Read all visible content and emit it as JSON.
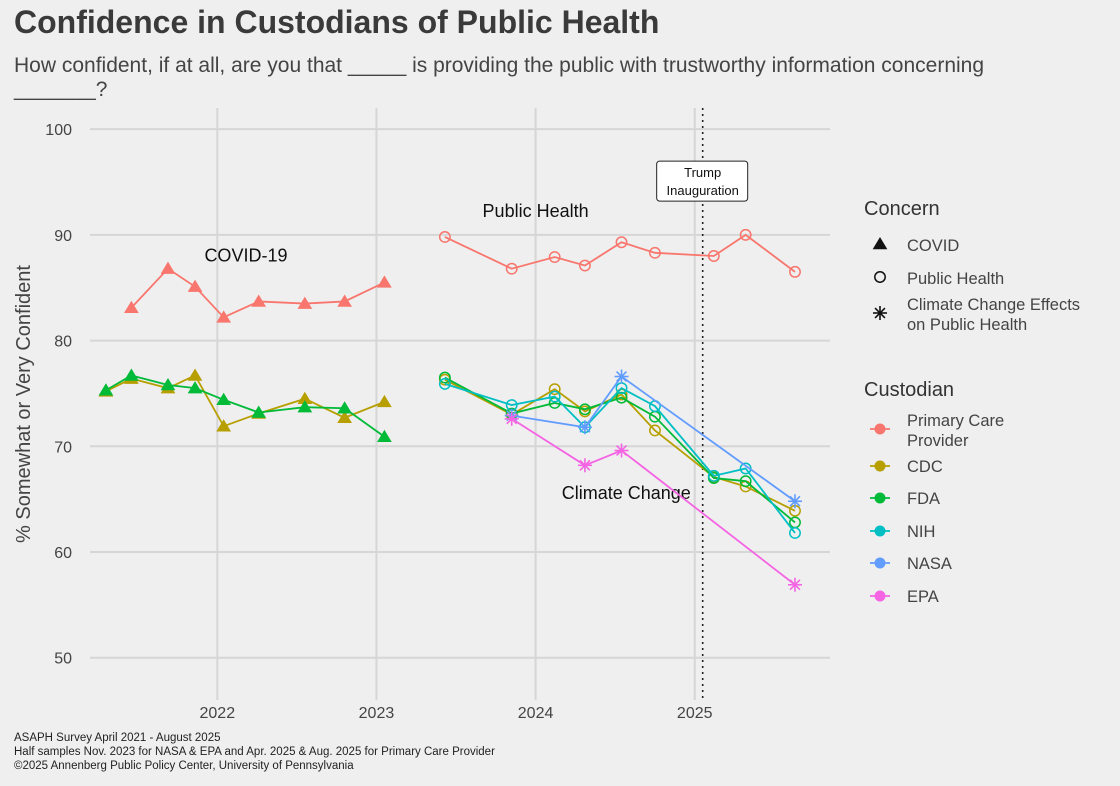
{
  "header": {
    "title": "Confidence in Custodians of Public Health",
    "subtitle": "How confident, if at all, are you that _____ is providing the public with trustworthy information concerning _______?"
  },
  "caption": {
    "line1": "ASAPH Survey April 2021 - August 2025",
    "line2": "Half samples Nov. 2023 for NASA & EPA and Apr. 2025 & Aug. 2025 for Primary Care Provider",
    "line3": "©2025 Annenberg Public Policy Center, University of Pennsylvania"
  },
  "chart_data": {
    "type": "line",
    "title": "Confidence in Custodians of Public Health",
    "xlabel": "",
    "ylabel": "% Somewhat or Very Confident",
    "xlim": [
      2021.2,
      2025.85
    ],
    "ylim": [
      46,
      102
    ],
    "x_ticks": [
      2022,
      2023,
      2024,
      2025
    ],
    "x_tick_labels": [
      "2022",
      "2023",
      "2024",
      "2025"
    ],
    "y_ticks": [
      50,
      60,
      70,
      80,
      90,
      100
    ],
    "y_tick_labels": [
      "50",
      "60",
      "70",
      "80",
      "90",
      "100"
    ],
    "grid": true,
    "colors": {
      "Primary Care Provider": "#f8766d",
      "CDC": "#b79f00",
      "FDA": "#00ba38",
      "NIH": "#00bfc4",
      "NASA": "#619cff",
      "EPA": "#f564e3"
    },
    "annotations": [
      {
        "text": "COVID-19",
        "x": 2022.18,
        "y": 87.5
      },
      {
        "text": "Public Health",
        "x": 2024.0,
        "y": 91.7
      },
      {
        "text": "Climate Change",
        "x": 2024.57,
        "y": 65.0
      }
    ],
    "vline": {
      "x": 2025.05,
      "label_line1": "Trump",
      "label_line2": "Inauguration",
      "label_y": 94.8
    },
    "legend": {
      "concern_title": "Concern",
      "concern_items": [
        {
          "shape": "triangle",
          "label": "COVID"
        },
        {
          "shape": "circle",
          "label": "Public Health"
        },
        {
          "shape": "asterisk",
          "label_line1": "Climate Change Effects",
          "label_line2": "on Public Health"
        }
      ],
      "custodian_title": "Custodian",
      "custodian_items": [
        {
          "name": "Primary Care Provider",
          "label_line1": "Primary Care",
          "label_line2": "Provider"
        },
        {
          "name": "CDC",
          "label_line1": "CDC"
        },
        {
          "name": "FDA",
          "label_line1": "FDA"
        },
        {
          "name": "NIH",
          "label_line1": "NIH"
        },
        {
          "name": "NASA",
          "label_line1": "NASA"
        },
        {
          "name": "EPA",
          "label_line1": "EPA"
        }
      ]
    },
    "series": [
      {
        "name": "Primary Care Provider",
        "concern": "COVID",
        "shape": "triangle",
        "x": [
          2021.46,
          2021.69,
          2021.86,
          2022.04,
          2022.26,
          2022.55,
          2022.8,
          2023.05
        ],
        "values": [
          83.1,
          86.8,
          85.1,
          82.2,
          83.7,
          83.5,
          83.7,
          85.5
        ]
      },
      {
        "name": "CDC",
        "concern": "COVID",
        "shape": "triangle",
        "x": [
          2021.3,
          2021.46,
          2021.69,
          2021.86,
          2022.04,
          2022.26,
          2022.55,
          2022.8,
          2023.05
        ],
        "values": [
          75.2,
          76.4,
          75.5,
          76.7,
          71.9,
          73.1,
          74.5,
          72.7,
          74.2
        ]
      },
      {
        "name": "FDA",
        "concern": "COVID",
        "shape": "triangle",
        "x": [
          2021.3,
          2021.46,
          2021.69,
          2021.86,
          2022.04,
          2022.26,
          2022.55,
          2022.8,
          2023.05
        ],
        "values": [
          75.3,
          76.7,
          75.8,
          75.5,
          74.4,
          73.2,
          73.7,
          73.6,
          70.9
        ]
      },
      {
        "name": "Primary Care Provider",
        "concern": "Public Health",
        "shape": "circle",
        "x": [
          2023.43,
          2023.85,
          2024.12,
          2024.31,
          2024.54,
          2024.75,
          2025.12,
          2025.32,
          2025.63
        ],
        "values": [
          89.8,
          86.8,
          87.9,
          87.1,
          89.3,
          88.3,
          88.0,
          90.0,
          86.5
        ]
      },
      {
        "name": "CDC",
        "concern": "Public Health",
        "shape": "circle",
        "x": [
          2023.43,
          2023.85,
          2024.12,
          2024.31,
          2024.54,
          2024.75,
          2025.12,
          2025.32,
          2025.63
        ],
        "values": [
          76.3,
          73.0,
          75.4,
          73.3,
          74.9,
          71.5,
          67.1,
          66.2,
          63.9
        ]
      },
      {
        "name": "FDA",
        "concern": "Public Health",
        "shape": "circle",
        "x": [
          2023.43,
          2023.85,
          2024.12,
          2024.31,
          2024.54,
          2024.75,
          2025.12,
          2025.32,
          2025.63
        ],
        "values": [
          76.5,
          73.1,
          74.1,
          73.5,
          74.6,
          72.8,
          67.0,
          66.7,
          62.8
        ]
      },
      {
        "name": "NIH",
        "concern": "Public Health",
        "shape": "circle",
        "x": [
          2023.43,
          2023.85,
          2024.12,
          2024.31,
          2024.54,
          2024.75,
          2025.12,
          2025.32,
          2025.63
        ],
        "values": [
          75.9,
          73.9,
          74.7,
          71.8,
          75.5,
          73.8,
          67.2,
          67.9,
          61.8
        ]
      },
      {
        "name": "NASA",
        "concern": "Climate Change Effects on Public Health",
        "shape": "asterisk",
        "x": [
          2023.85,
          2024.31,
          2024.54,
          2025.63
        ],
        "values": [
          72.9,
          71.8,
          76.6,
          64.8
        ]
      },
      {
        "name": "EPA",
        "concern": "Climate Change Effects on Public Health",
        "shape": "asterisk",
        "x": [
          2023.85,
          2024.31,
          2024.54,
          2025.63
        ],
        "values": [
          72.6,
          68.2,
          69.6,
          56.9
        ]
      }
    ]
  }
}
